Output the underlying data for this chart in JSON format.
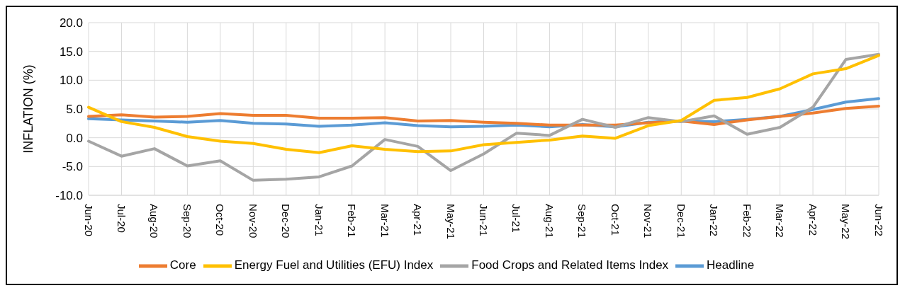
{
  "chart_data": {
    "type": "line",
    "ylabel": "INFLATION (%)",
    "categories": [
      "Jun-20",
      "Jul-20",
      "Aug-20",
      "Sep-20",
      "Oct-20",
      "Nov-20",
      "Dec-20",
      "Jan-21",
      "Feb-21",
      "Mar-21",
      "Apr-21",
      "May-21",
      "Jun-21",
      "Jul-21",
      "Aug-21",
      "Sep-21",
      "Oct-21",
      "Nov-21",
      "Dec-21",
      "Jan-22",
      "Feb-22",
      "Mar-22",
      "Apr-22",
      "May-22",
      "Jun-22"
    ],
    "series": [
      {
        "name": "Headline",
        "color": "#5b9bd5",
        "values": [
          3.3,
          3.1,
          2.9,
          2.7,
          3.0,
          2.5,
          2.4,
          2.0,
          2.2,
          2.6,
          2.1,
          1.9,
          2.0,
          2.2,
          1.9,
          2.3,
          1.9,
          2.7,
          2.9,
          2.8,
          3.2,
          3.7,
          4.9,
          6.2,
          6.8
        ]
      },
      {
        "name": "Core",
        "color": "#ed7d31",
        "values": [
          3.7,
          4.0,
          3.6,
          3.7,
          4.2,
          3.9,
          3.9,
          3.4,
          3.4,
          3.5,
          2.9,
          3.0,
          2.7,
          2.5,
          2.2,
          2.2,
          2.2,
          2.6,
          2.9,
          2.3,
          3.1,
          3.7,
          4.3,
          5.1,
          5.5
        ]
      },
      {
        "name": "Food Crops and Related Items Index",
        "color": "#a5a5a5",
        "values": [
          -0.6,
          -3.2,
          -1.9,
          -4.9,
          -4.0,
          -7.4,
          -7.2,
          -6.8,
          -4.9,
          -0.3,
          -1.5,
          -5.7,
          -2.8,
          0.8,
          0.4,
          3.2,
          1.8,
          3.5,
          2.8,
          3.8,
          0.6,
          1.8,
          5.3,
          13.6,
          14.5
        ]
      },
      {
        "name": "Energy Fuel and Utilities (EFU) Index",
        "color": "#ffc000",
        "values": [
          5.3,
          2.8,
          1.8,
          0.2,
          -0.6,
          -1.0,
          -2.0,
          -2.6,
          -1.4,
          -2.0,
          -2.4,
          -2.3,
          -1.2,
          -0.8,
          -0.4,
          0.3,
          -0.1,
          2.1,
          3.0,
          6.5,
          7.0,
          8.5,
          11.1,
          12.0,
          14.3
        ]
      }
    ],
    "ylim": [
      -10,
      20
    ],
    "yticks": [
      {
        "value": -10,
        "label": "-10.0"
      },
      {
        "value": -5,
        "label": "-5.0"
      },
      {
        "value": 0,
        "label": "0.0"
      },
      {
        "value": 5,
        "label": "5.0"
      },
      {
        "value": 10,
        "label": "10.0"
      },
      {
        "value": 15,
        "label": "15.0"
      },
      {
        "value": 20,
        "label": "20.0"
      }
    ],
    "grid": true,
    "legend": "bottom",
    "marker": "none",
    "line_style": "solid"
  }
}
